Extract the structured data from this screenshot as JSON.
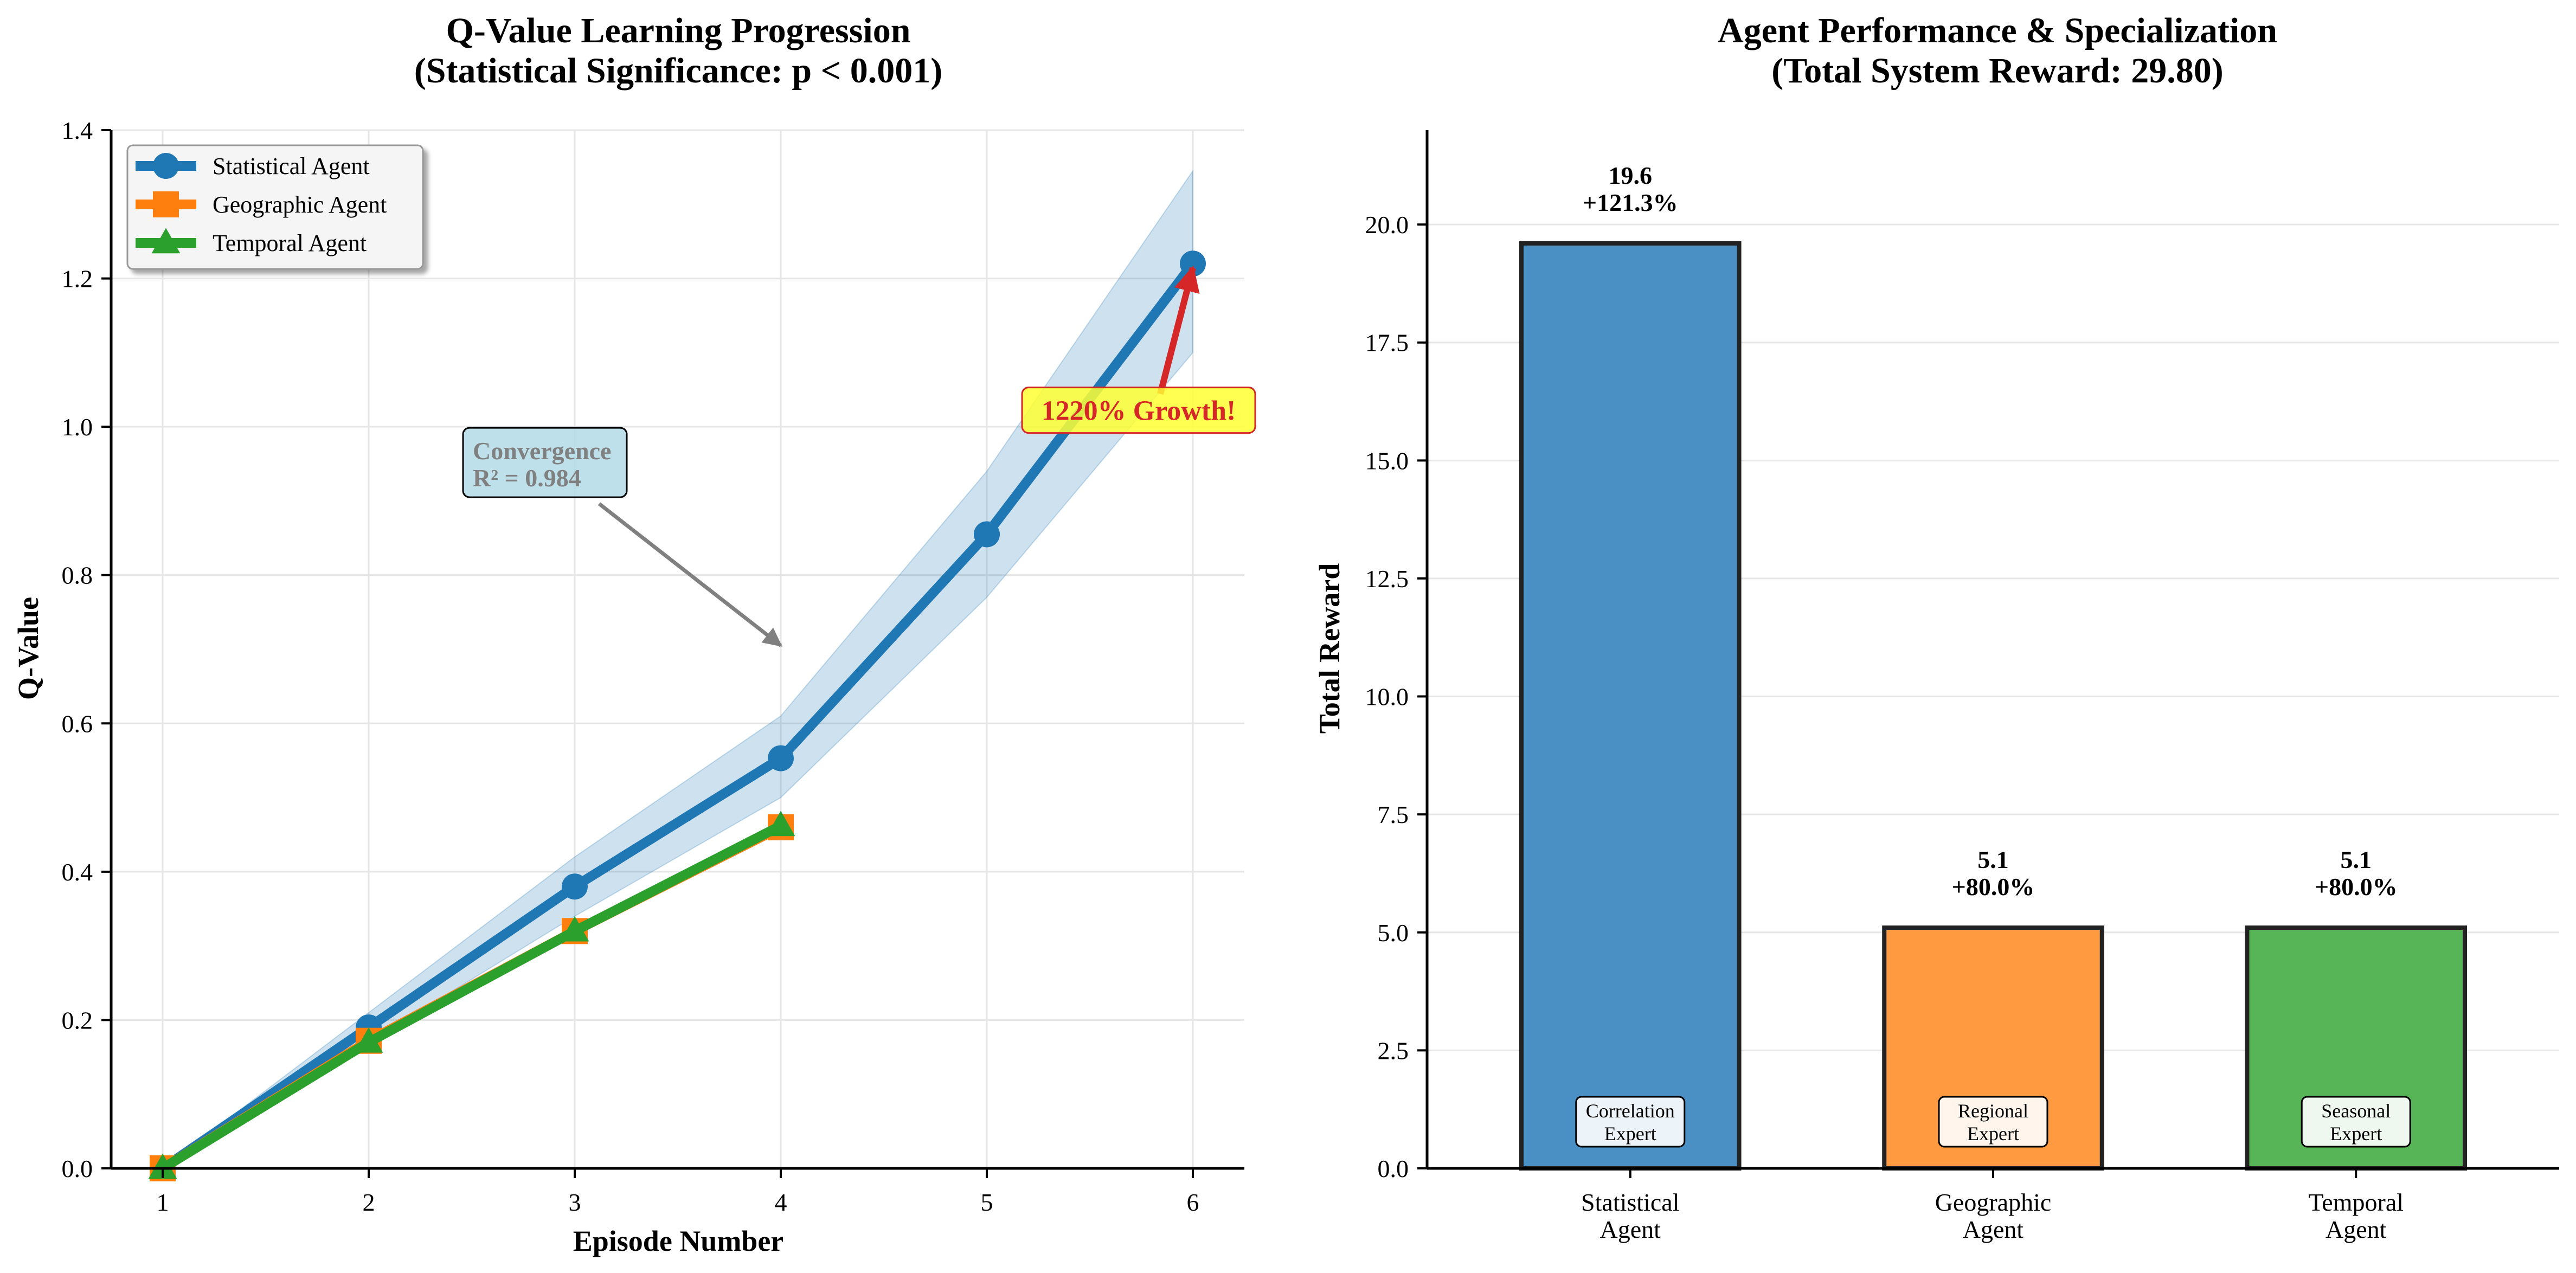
{
  "chart_data": [
    {
      "type": "line",
      "title_lines": [
        "Q-Value Learning Progression",
        "(Statistical Significance: p < 0.001)"
      ],
      "xlabel": "Episode Number",
      "ylabel": "Q-Value",
      "xlim": [
        0.75,
        6.25
      ],
      "ylim": [
        0,
        1.4
      ],
      "xticks": [
        "1",
        "2",
        "3",
        "4",
        "5",
        "6"
      ],
      "yticks": [
        "0.0",
        "0.2",
        "0.4",
        "0.6",
        "0.8",
        "1.0",
        "1.2",
        "1.4"
      ],
      "grid": true,
      "legend_position": "top-left",
      "series": [
        {
          "name": "Statistical Agent",
          "color": "#1f77b4",
          "marker": "circle",
          "x": [
            1,
            2,
            3,
            4,
            5,
            6
          ],
          "y": [
            0.0,
            0.19,
            0.38,
            0.553,
            0.855,
            1.22
          ],
          "band_lower": [
            0.0,
            0.17,
            0.34,
            0.5,
            0.77,
            1.1
          ],
          "band_upper": [
            0.0,
            0.21,
            0.42,
            0.61,
            0.94,
            1.345
          ]
        },
        {
          "name": "Geographic Agent",
          "color": "#ff7f0e",
          "marker": "square",
          "x": [
            1,
            2,
            3,
            4
          ],
          "y": [
            0.0,
            0.172,
            0.32,
            0.46
          ]
        },
        {
          "name": "Temporal Agent",
          "color": "#2ca02c",
          "marker": "triangle",
          "x": [
            1,
            2,
            3,
            4
          ],
          "y": [
            0.0,
            0.17,
            0.32,
            0.462
          ]
        }
      ],
      "annotations": [
        {
          "lines": [
            "Convergence",
            "R² = 0.984"
          ],
          "box_color": "#add8e6",
          "text_color": "#808080",
          "text_at": [
            2.5,
            0.905
          ],
          "arrow_to": [
            4.0,
            0.705
          ]
        },
        {
          "lines": [
            "1220% Growth!"
          ],
          "box_color": "#ffff33",
          "text_color": "#d62728",
          "text_at": [
            5.75,
            1.015
          ],
          "arrow_to": [
            6.0,
            1.22
          ]
        }
      ]
    },
    {
      "type": "bar",
      "title_lines": [
        "Agent Performance & Specialization",
        "(Total System Reward: 29.80)"
      ],
      "xlabel": "",
      "ylabel": "Total Reward",
      "ylim": [
        0,
        22
      ],
      "yticks": [
        "0.0",
        "2.5",
        "5.0",
        "7.5",
        "10.0",
        "12.5",
        "15.0",
        "17.5",
        "20.0"
      ],
      "grid": true,
      "categories": [
        [
          "Statistical",
          "Agent"
        ],
        [
          "Geographic",
          "Agent"
        ],
        [
          "Temporal",
          "Agent"
        ]
      ],
      "values": [
        19.6,
        5.1,
        5.1
      ],
      "colors": [
        "#4a90c4",
        "#ff9a40",
        "#57b457"
      ],
      "value_labels": [
        "19.6",
        "5.1",
        "5.1"
      ],
      "pct_labels": [
        "+121.3%",
        "+80.0%",
        "+80.0%"
      ],
      "badges": [
        [
          "Correlation",
          "Expert"
        ],
        [
          "Regional",
          "Expert"
        ],
        [
          "Seasonal",
          "Expert"
        ]
      ]
    }
  ]
}
